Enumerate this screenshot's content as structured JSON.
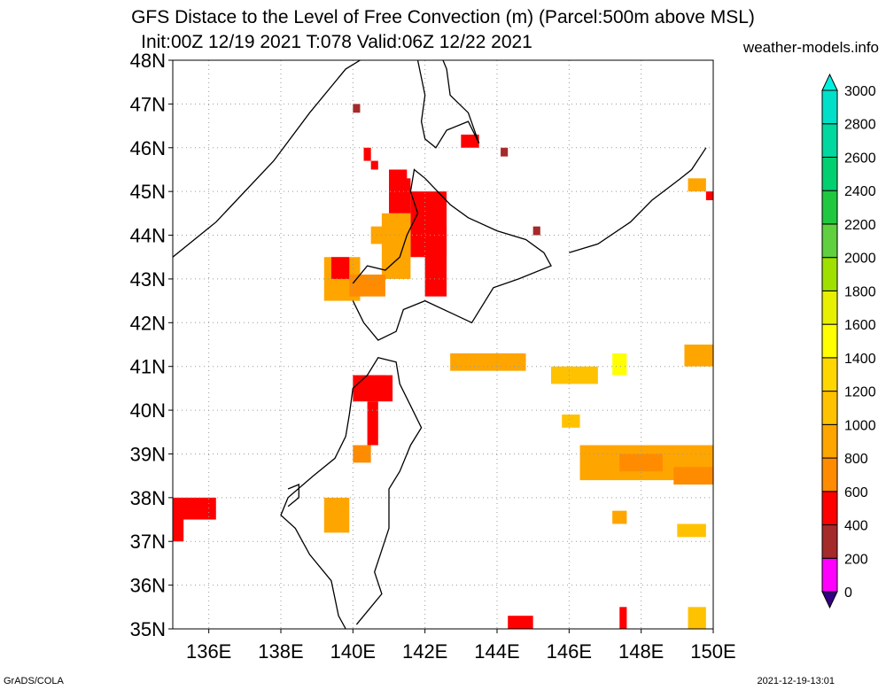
{
  "title_line1": "GFS Distace to the Level of Free Convection (m) (Parcel:500m above MSL)",
  "title_line2": "Init:00Z 12/19 2021 T:078 Valid:06Z 12/22 2021",
  "credit": "weather-models.info",
  "footer_left": "GrADS/COLA",
  "footer_right": "2021-12-19-13:01",
  "map": {
    "lon_range": [
      135,
      150
    ],
    "lat_range": [
      35,
      48
    ],
    "lon_labels": [
      "136E",
      "138E",
      "140E",
      "142E",
      "144E",
      "146E",
      "148E",
      "150E"
    ],
    "lon_values": [
      136,
      138,
      140,
      142,
      144,
      146,
      148,
      150
    ],
    "lat_labels": [
      "35N",
      "36N",
      "37N",
      "38N",
      "39N",
      "40N",
      "41N",
      "42N",
      "43N",
      "44N",
      "45N",
      "46N",
      "47N",
      "48N"
    ],
    "lat_values": [
      35,
      36,
      37,
      38,
      39,
      40,
      41,
      42,
      43,
      44,
      45,
      46,
      47,
      48
    ],
    "gridlines": "dotted"
  },
  "colorbar": {
    "labels": [
      "0",
      "200",
      "400",
      "600",
      "800",
      "1000",
      "1200",
      "1400",
      "1600",
      "1800",
      "2000",
      "2200",
      "2400",
      "2600",
      "2800",
      "3000"
    ],
    "colors": [
      "#330080",
      "#ff00ff",
      "#a52a2a",
      "#ff0000",
      "#ff8c00",
      "#ffa500",
      "#ffc200",
      "#ffd700",
      "#ffff00",
      "#e6f000",
      "#a0e000",
      "#60d040",
      "#20c840",
      "#00d070",
      "#00d8a0",
      "#00e0c8",
      "#00f0e0"
    ]
  },
  "features": {
    "islands": [
      {
        "name": "Honshu north",
        "coords": [
          [
            139.8,
            35.0
          ],
          [
            139.6,
            35.3
          ],
          [
            139.5,
            35.7
          ],
          [
            139.4,
            36.1
          ],
          [
            138.8,
            36.7
          ],
          [
            138.4,
            37.3
          ],
          [
            138.0,
            37.6
          ],
          [
            138.2,
            38.0
          ],
          [
            138.9,
            38.5
          ],
          [
            139.5,
            38.9
          ],
          [
            139.8,
            39.4
          ],
          [
            139.9,
            39.9
          ],
          [
            140.0,
            40.5
          ],
          [
            140.4,
            40.8
          ],
          [
            140.7,
            41.2
          ],
          [
            141.2,
            41.1
          ],
          [
            141.3,
            40.6
          ],
          [
            141.6,
            40.1
          ],
          [
            141.9,
            39.6
          ],
          [
            141.6,
            39.2
          ],
          [
            141.3,
            38.6
          ],
          [
            141.0,
            38.2
          ],
          [
            141.0,
            37.8
          ],
          [
            141.0,
            37.3
          ],
          [
            140.8,
            36.8
          ],
          [
            140.6,
            36.3
          ],
          [
            140.8,
            35.8
          ],
          [
            140.5,
            35.5
          ],
          [
            140.1,
            35.1
          ]
        ]
      },
      {
        "name": "Hokkaido",
        "coords": [
          [
            140.0,
            42.5
          ],
          [
            140.3,
            42.0
          ],
          [
            140.7,
            41.6
          ],
          [
            141.2,
            41.8
          ],
          [
            141.4,
            42.3
          ],
          [
            142.0,
            42.5
          ],
          [
            143.3,
            42.0
          ],
          [
            143.9,
            42.8
          ],
          [
            144.6,
            43.0
          ],
          [
            145.5,
            43.3
          ],
          [
            145.3,
            43.6
          ],
          [
            144.8,
            43.9
          ],
          [
            144.0,
            44.1
          ],
          [
            143.2,
            44.4
          ],
          [
            142.7,
            44.7
          ],
          [
            142.0,
            45.3
          ],
          [
            141.7,
            45.5
          ],
          [
            141.6,
            45.0
          ],
          [
            141.8,
            44.5
          ],
          [
            141.5,
            44.0
          ],
          [
            141.3,
            43.5
          ],
          [
            140.9,
            43.2
          ],
          [
            140.4,
            43.3
          ],
          [
            140.0,
            42.9
          ]
        ]
      },
      {
        "name": "Sakhalin south",
        "coords": [
          [
            141.8,
            48.0
          ],
          [
            142.0,
            47.2
          ],
          [
            141.9,
            46.6
          ],
          [
            142.0,
            46.2
          ],
          [
            142.3,
            46.0
          ],
          [
            142.6,
            46.4
          ],
          [
            143.2,
            46.6
          ],
          [
            143.5,
            46.1
          ],
          [
            143.2,
            46.8
          ],
          [
            142.7,
            47.2
          ],
          [
            142.6,
            47.8
          ],
          [
            142.5,
            48.0
          ]
        ]
      },
      {
        "name": "Kuril arc",
        "coords": [
          [
            146.0,
            43.6
          ],
          [
            146.8,
            43.8
          ],
          [
            147.7,
            44.3
          ],
          [
            148.3,
            44.8
          ],
          [
            149.1,
            45.3
          ],
          [
            149.4,
            45.5
          ],
          [
            149.8,
            46.0
          ]
        ]
      },
      {
        "name": "Sado",
        "coords": [
          [
            138.2,
            37.8
          ],
          [
            138.5,
            38.0
          ],
          [
            138.5,
            38.3
          ],
          [
            138.2,
            38.2
          ]
        ]
      }
    ],
    "mainland_coast": [
      [
        135.0,
        43.5
      ],
      [
        136.2,
        44.3
      ],
      [
        137.8,
        45.7
      ],
      [
        138.8,
        46.8
      ],
      [
        139.8,
        47.8
      ],
      [
        140.2,
        48.0
      ]
    ]
  },
  "cells": [
    {
      "lat_min": 45.0,
      "lat_max": 45.5,
      "lon_min": 141.0,
      "lon_max": 141.5,
      "value": 450
    },
    {
      "lat_min": 44.5,
      "lat_max": 45.3,
      "lon_min": 141.0,
      "lon_max": 141.6,
      "value": 550
    },
    {
      "lat_min": 43.5,
      "lat_max": 45.0,
      "lon_min": 141.6,
      "lon_max": 142.6,
      "value": 450
    },
    {
      "lat_min": 42.6,
      "lat_max": 44.2,
      "lon_min": 142.0,
      "lon_max": 142.6,
      "value": 550
    },
    {
      "lat_min": 43.0,
      "lat_max": 44.5,
      "lon_min": 140.8,
      "lon_max": 141.6,
      "value": 850
    },
    {
      "lat_min": 43.8,
      "lat_max": 44.2,
      "lon_min": 140.5,
      "lon_max": 141.0,
      "value": 950
    },
    {
      "lat_min": 42.5,
      "lat_max": 43.5,
      "lon_min": 139.2,
      "lon_max": 140.2,
      "value": 950
    },
    {
      "lat_min": 43.0,
      "lat_max": 43.5,
      "lon_min": 139.4,
      "lon_max": 139.9,
      "value": 550
    },
    {
      "lat_min": 42.6,
      "lat_max": 43.1,
      "lon_min": 139.9,
      "lon_max": 140.9,
      "value": 650
    },
    {
      "lat_min": 40.2,
      "lat_max": 40.8,
      "lon_min": 140.0,
      "lon_max": 141.1,
      "value": 550
    },
    {
      "lat_min": 40.5,
      "lat_max": 40.8,
      "lon_min": 140.4,
      "lon_max": 140.9,
      "value": 450
    },
    {
      "lat_min": 39.2,
      "lat_max": 40.2,
      "lon_min": 140.4,
      "lon_max": 140.7,
      "value": 450
    },
    {
      "lat_min": 38.8,
      "lat_max": 39.2,
      "lon_min": 140.0,
      "lon_max": 140.5,
      "value": 650
    },
    {
      "lat_min": 37.2,
      "lat_max": 38.0,
      "lon_min": 139.2,
      "lon_max": 139.9,
      "value": 850
    },
    {
      "lat_min": 37.5,
      "lat_max": 38.0,
      "lon_min": 135.0,
      "lon_max": 136.2,
      "value": 450
    },
    {
      "lat_min": 37.0,
      "lat_max": 37.8,
      "lon_min": 135.0,
      "lon_max": 135.3,
      "value": 550
    },
    {
      "lat_min": 40.9,
      "lat_max": 41.3,
      "lon_min": 142.7,
      "lon_max": 144.8,
      "value": 950
    },
    {
      "lat_min": 40.6,
      "lat_max": 41.0,
      "lon_min": 145.5,
      "lon_max": 146.8,
      "value": 1000
    },
    {
      "lat_min": 40.8,
      "lat_max": 41.3,
      "lon_min": 147.2,
      "lon_max": 147.6,
      "value": 1450
    },
    {
      "lat_min": 38.4,
      "lat_max": 39.2,
      "lon_min": 146.3,
      "lon_max": 150.0,
      "value": 950
    },
    {
      "lat_min": 38.6,
      "lat_max": 39.0,
      "lon_min": 147.4,
      "lon_max": 148.6,
      "value": 650
    },
    {
      "lat_min": 38.3,
      "lat_max": 38.7,
      "lon_min": 148.9,
      "lon_max": 150.0,
      "value": 650
    },
    {
      "lat_min": 37.1,
      "lat_max": 37.4,
      "lon_min": 149.0,
      "lon_max": 149.8,
      "value": 1000
    },
    {
      "lat_min": 41.0,
      "lat_max": 41.5,
      "lon_min": 149.2,
      "lon_max": 150.0,
      "value": 950
    },
    {
      "lat_min": 45.0,
      "lat_max": 45.3,
      "lon_min": 149.3,
      "lon_max": 149.8,
      "value": 950
    },
    {
      "lat_min": 44.8,
      "lat_max": 45.0,
      "lon_min": 149.8,
      "lon_max": 150.0,
      "value": 550
    },
    {
      "lat_min": 35.0,
      "lat_max": 35.3,
      "lon_min": 144.3,
      "lon_max": 145.0,
      "value": 550
    },
    {
      "lat_min": 35.0,
      "lat_max": 35.5,
      "lon_min": 149.3,
      "lon_max": 149.8,
      "value": 1000
    },
    {
      "lat_min": 35.0,
      "lat_max": 35.5,
      "lon_min": 147.4,
      "lon_max": 147.6,
      "value": 550
    },
    {
      "lat_min": 46.8,
      "lat_max": 47.0,
      "lon_min": 140.0,
      "lon_max": 140.2,
      "value": 250
    },
    {
      "lat_min": 45.8,
      "lat_max": 46.0,
      "lon_min": 144.1,
      "lon_max": 144.3,
      "value": 250
    },
    {
      "lat_min": 44.0,
      "lat_max": 44.2,
      "lon_min": 145.0,
      "lon_max": 145.2,
      "value": 250
    },
    {
      "lat_min": 46.0,
      "lat_max": 46.3,
      "lon_min": 143.0,
      "lon_max": 143.5,
      "value": 450
    },
    {
      "lat_min": 45.7,
      "lat_max": 46.0,
      "lon_min": 140.3,
      "lon_max": 140.5,
      "value": 450
    },
    {
      "lat_min": 45.5,
      "lat_max": 45.7,
      "lon_min": 140.5,
      "lon_max": 140.7,
      "value": 450
    },
    {
      "lat_min": 39.6,
      "lat_max": 39.9,
      "lon_min": 145.8,
      "lon_max": 146.3,
      "value": 1000
    },
    {
      "lat_min": 37.4,
      "lat_max": 37.7,
      "lon_min": 147.2,
      "lon_max": 147.6,
      "value": 950
    }
  ]
}
